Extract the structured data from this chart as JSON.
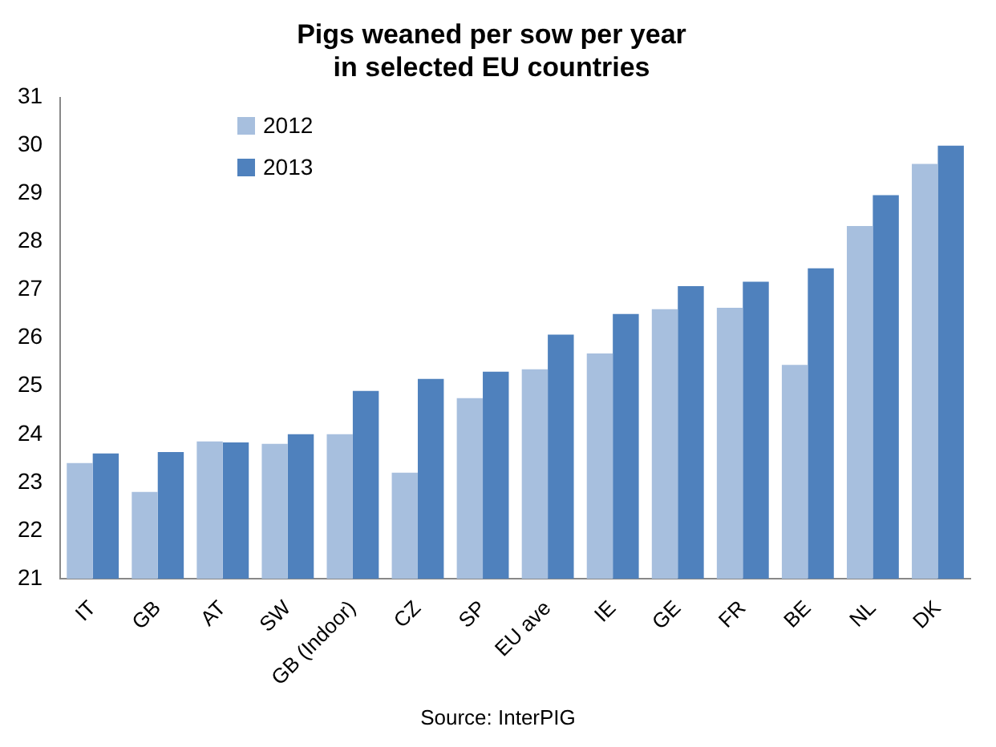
{
  "chart_data": {
    "type": "bar",
    "title": [
      "Pigs weaned per sow per year",
      "in selected EU countries"
    ],
    "categories": [
      "IT",
      "GB",
      "AT",
      "SW",
      "GB (Indoor)",
      "CZ",
      "SP",
      "EU ave",
      "IE",
      "GE",
      "FR",
      "BE",
      "NL",
      "DK"
    ],
    "series": [
      {
        "name": "2012",
        "color": "#a7bfde",
        "values": [
          23.4,
          22.8,
          23.85,
          23.8,
          24.0,
          23.2,
          24.75,
          25.35,
          25.68,
          26.6,
          26.63,
          25.44,
          28.33,
          29.62
        ]
      },
      {
        "name": "2013",
        "color": "#4f81bd",
        "values": [
          23.6,
          23.63,
          23.83,
          24.0,
          24.9,
          25.15,
          25.3,
          26.07,
          26.5,
          27.08,
          27.17,
          27.45,
          28.97,
          30.0
        ]
      }
    ],
    "ylim": [
      21,
      31
    ],
    "yticks": [
      21,
      22,
      23,
      24,
      25,
      26,
      27,
      28,
      29,
      30,
      31
    ],
    "grid": false,
    "legend": "top left",
    "annotations": [
      "Source: InterPIG"
    ]
  }
}
